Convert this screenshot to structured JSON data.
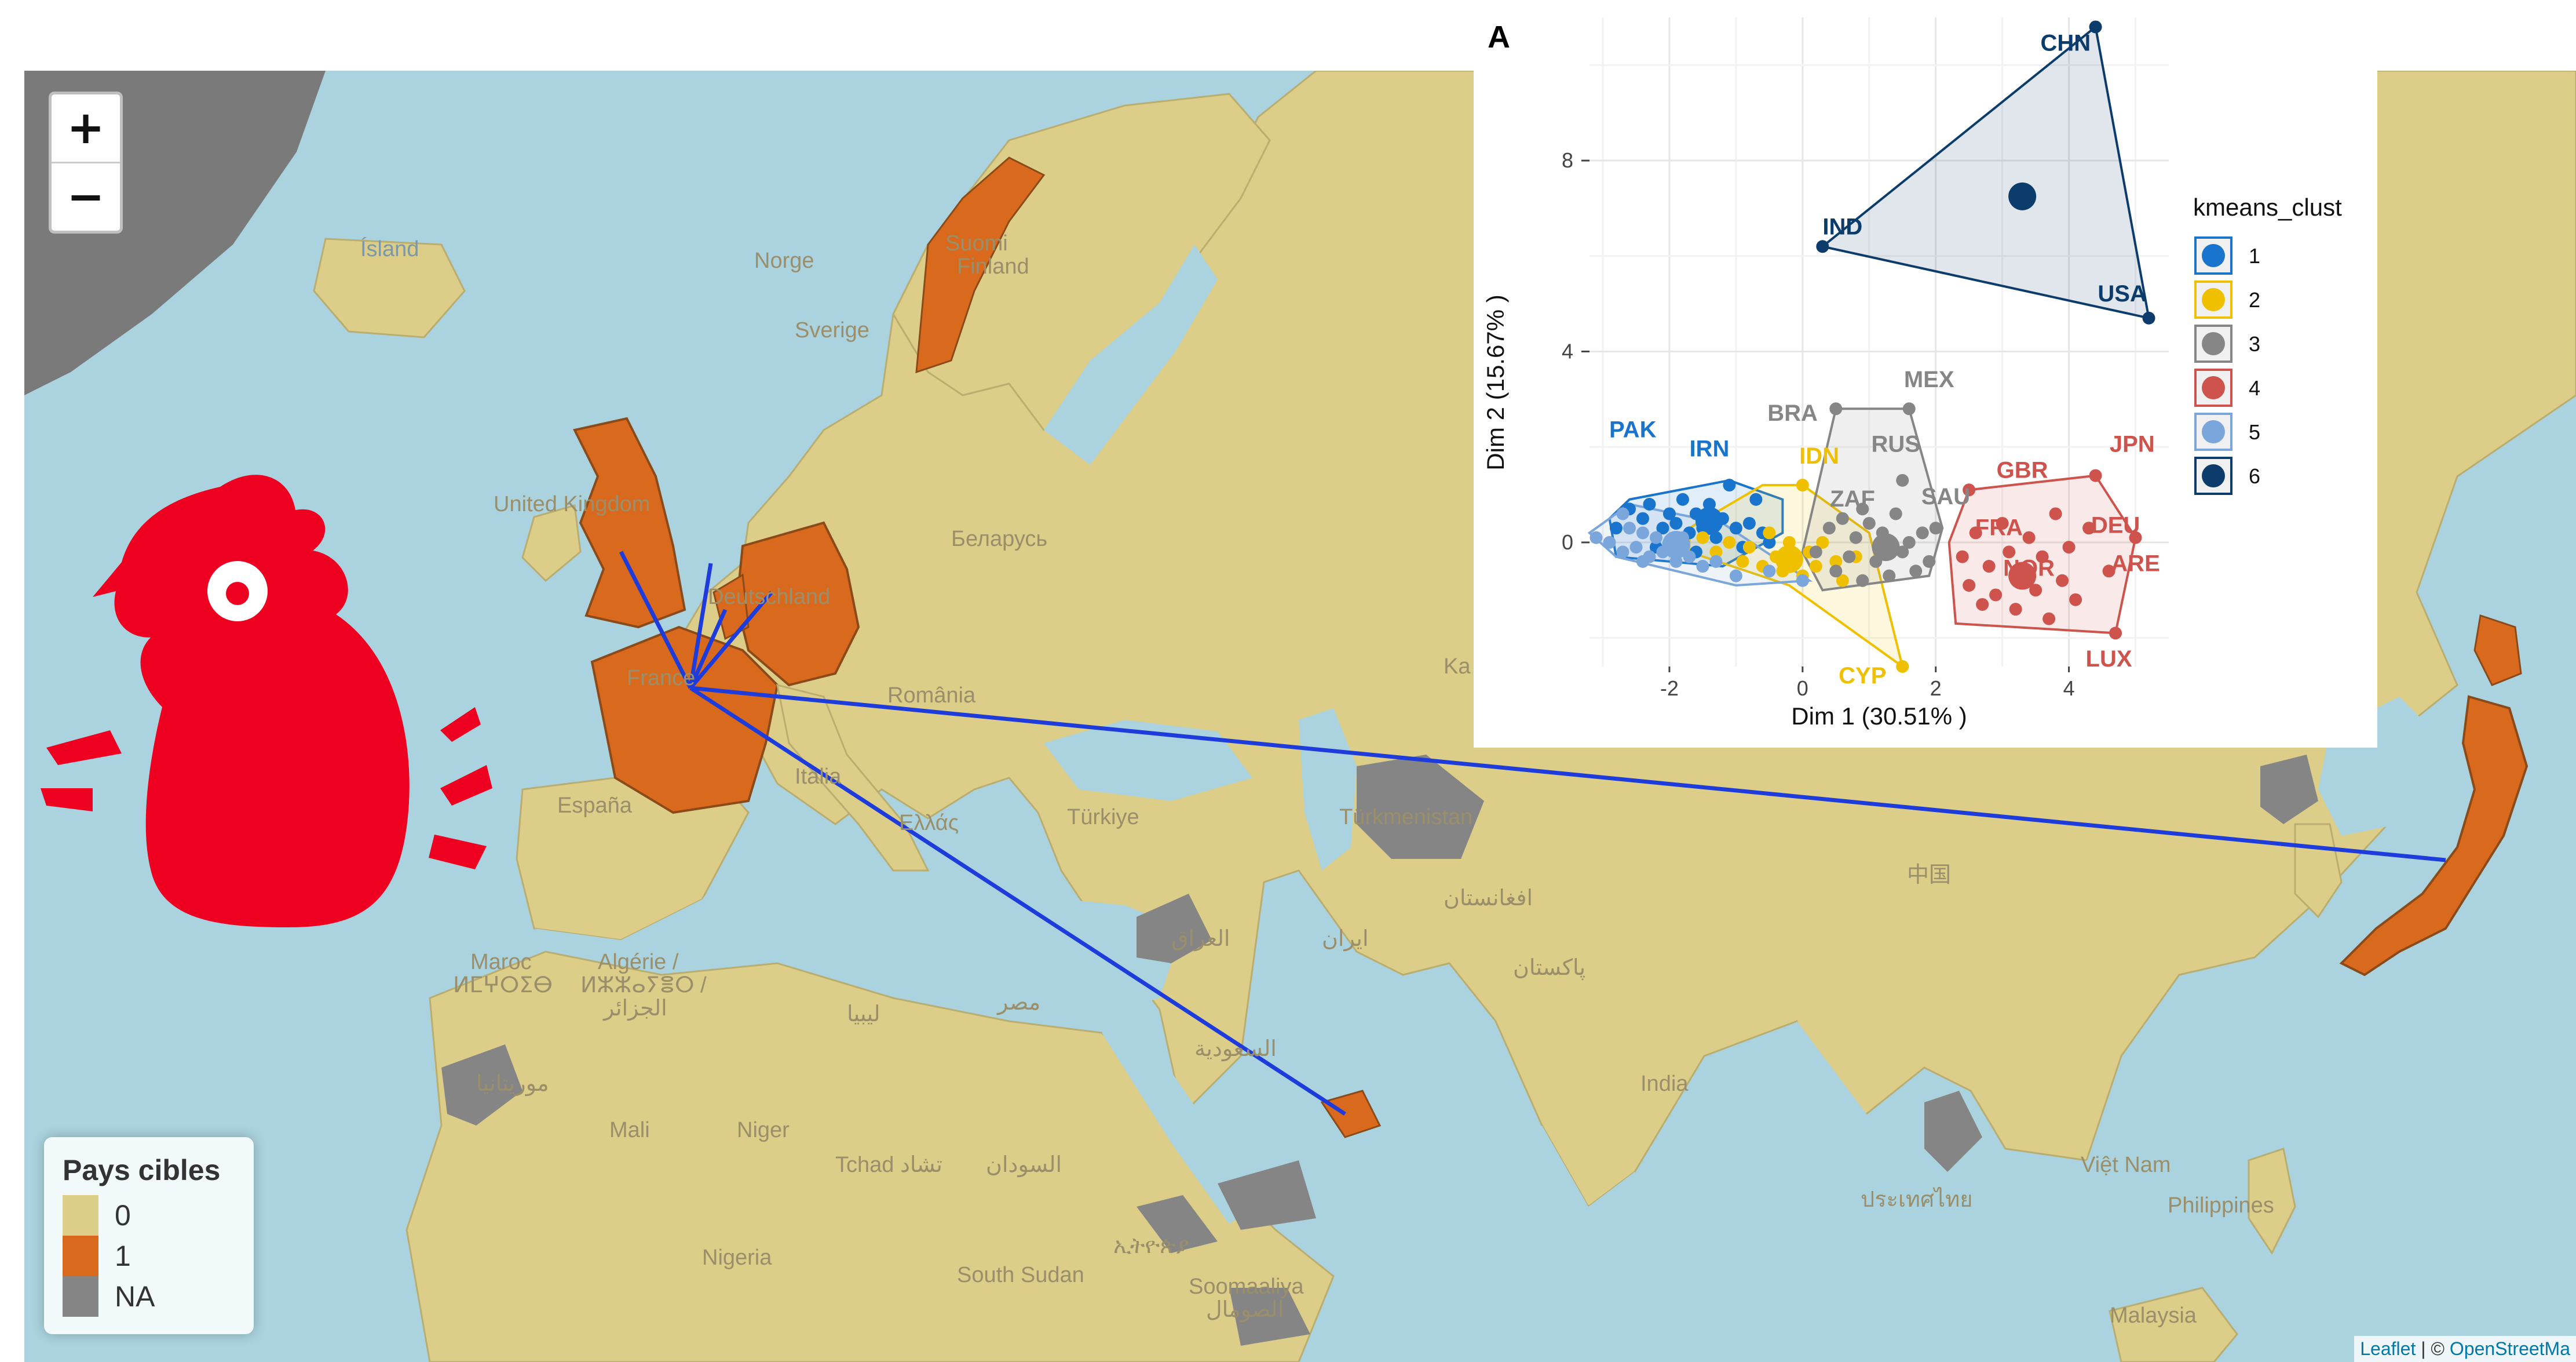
{
  "map": {
    "zoom_in_label": "+",
    "zoom_out_label": "−",
    "legend": {
      "title": "Pays cibles",
      "items": [
        {
          "label": "0",
          "color": "#dccd88"
        },
        {
          "label": "1",
          "color": "#d96a1d"
        },
        {
          "label": "NA",
          "color": "#858585"
        }
      ]
    },
    "attribution": {
      "leaflet": "Leaflet",
      "sep": " | © ",
      "osm": "OpenStreetMa"
    },
    "place_labels": {
      "island": "Ísland",
      "norge": "Norge",
      "suomi": "Suomi",
      "finland": "Finland",
      "sverige": "Sverige",
      "uk": "United Kingdom",
      "deutschland": "Deutschland",
      "belarus": "Беларусь",
      "france": "France",
      "romania": "România",
      "espana": "España",
      "italia": "Italia",
      "turkiye": "Türkiye",
      "ellas": "Ελλάς",
      "kaz": "Ka",
      "turkmenistan": "Türkmenistan",
      "iraq": "العراق",
      "iran": "ایران",
      "afghanistan": "افغانستان",
      "pakistan": "پاکستان",
      "india": "India",
      "china": "中国",
      "misr": "مصر",
      "libya": "ليبيا",
      "saudi": "السعودية",
      "maroc1": "Maroc",
      "maroc2": "ⵍⵎⵖⵔⵉⴱ",
      "algerie1": "Algérie /",
      "algerie2": "ⵍⵣⵣⴰⵢⴻⵔ /",
      "algerie3": "الجزائر",
      "mauritania": "موريتانيا",
      "mali": "Mali",
      "niger": "Niger",
      "tchad": "Tchad تشاد",
      "sudan": "السودان",
      "nigeria": "Nigeria",
      "ethiopia": "ኢትዮጵያ",
      "south_sudan": "South Sudan",
      "somalia1": "Soomaaliya",
      "somalia2": "الصومال",
      "vietnam": "Việt Nam",
      "philippines": "Philippines",
      "malaysia": "Malaysia",
      "thailand": "ประเทศไทย"
    }
  },
  "chart_data": {
    "type": "scatter",
    "panel_label": "A",
    "xlabel": "Dim 1 (30.51% )",
    "ylabel": "Dim 2 (15.67% )",
    "xlim": [
      -3.2,
      5.5
    ],
    "ylim": [
      -2.6,
      11.0
    ],
    "xticks": [
      -2,
      0,
      2,
      4
    ],
    "yticks": [
      0,
      4,
      8
    ],
    "legend_title": "kmeans_clust",
    "clusters": [
      {
        "name": "1",
        "color": "#1874cd",
        "hull": [
          [
            -2.9,
            0.5
          ],
          [
            -2.6,
            0.9
          ],
          [
            -1.1,
            1.3
          ],
          [
            -0.3,
            0.9
          ],
          [
            -0.3,
            0.2
          ],
          [
            -1.2,
            -0.5
          ],
          [
            -2.8,
            -0.3
          ]
        ],
        "centroid": [
          -1.4,
          0.45
        ],
        "points": [
          [
            -2.6,
            0.7
          ],
          [
            -2.4,
            0.5
          ],
          [
            -2.3,
            0.8
          ],
          [
            -2.1,
            0.3
          ],
          [
            -2.0,
            0.6
          ],
          [
            -1.9,
            0.4
          ],
          [
            -1.8,
            0.9
          ],
          [
            -1.7,
            0.2
          ],
          [
            -1.6,
            0.6
          ],
          [
            -1.5,
            0.3
          ],
          [
            -1.4,
            0.8
          ],
          [
            -1.3,
            0.1
          ],
          [
            -1.2,
            0.5
          ],
          [
            -1.1,
            1.2
          ],
          [
            -1.0,
            0.3
          ],
          [
            -0.9,
            -0.1
          ],
          [
            -0.8,
            0.4
          ],
          [
            -0.7,
            0.9
          ],
          [
            -0.6,
            0.2
          ],
          [
            -0.5,
            0.0
          ],
          [
            -2.8,
            0.3
          ],
          [
            -2.2,
            -0.1
          ],
          [
            -1.6,
            -0.2
          ]
        ],
        "labels": [
          {
            "text": "PAK",
            "x": -2.55,
            "y": 2.2
          },
          {
            "text": "IRN",
            "x": -1.4,
            "y": 1.8
          }
        ]
      },
      {
        "name": "2",
        "color": "#efc000",
        "hull": [
          [
            -1.7,
            0.3
          ],
          [
            -0.6,
            1.2
          ],
          [
            0.0,
            1.2
          ],
          [
            1.0,
            0.2
          ],
          [
            1.5,
            -2.6
          ],
          [
            -0.2,
            -0.9
          ],
          [
            -1.7,
            -0.2
          ]
        ],
        "centroid": [
          -0.2,
          -0.35
        ],
        "points": [
          [
            -1.5,
            0.1
          ],
          [
            -1.3,
            -0.2
          ],
          [
            -1.1,
            0.0
          ],
          [
            -0.9,
            -0.4
          ],
          [
            -0.8,
            -0.1
          ],
          [
            -0.6,
            -0.5
          ],
          [
            -0.5,
            0.2
          ],
          [
            -0.4,
            -0.3
          ],
          [
            -0.3,
            -0.6
          ],
          [
            -0.2,
            0.0
          ],
          [
            -0.1,
            -0.4
          ],
          [
            0.0,
            -0.7
          ],
          [
            0.1,
            -0.2
          ],
          [
            0.2,
            -0.5
          ],
          [
            0.3,
            0.0
          ],
          [
            0.5,
            -0.4
          ],
          [
            0.6,
            -0.8
          ],
          [
            0.8,
            -0.3
          ],
          [
            0.0,
            1.2
          ],
          [
            1.5,
            -2.6
          ]
        ],
        "labels": [
          {
            "text": "IDN",
            "x": 0.25,
            "y": 1.65
          },
          {
            "text": "CYP",
            "x": 0.9,
            "y": -2.95
          }
        ]
      },
      {
        "name": "3",
        "color": "#868686",
        "hull": [
          [
            0.5,
            2.8
          ],
          [
            1.6,
            2.8
          ],
          [
            2.1,
            0.3
          ],
          [
            1.9,
            -0.7
          ],
          [
            0.3,
            -1.0
          ],
          [
            0.0,
            -0.2
          ]
        ],
        "centroid": [
          1.25,
          -0.1
        ],
        "points": [
          [
            0.2,
            -0.2
          ],
          [
            0.4,
            0.3
          ],
          [
            0.5,
            -0.6
          ],
          [
            0.6,
            0.5
          ],
          [
            0.7,
            -0.3
          ],
          [
            0.8,
            0.1
          ],
          [
            0.9,
            -0.8
          ],
          [
            1.0,
            0.4
          ],
          [
            1.1,
            -0.4
          ],
          [
            1.2,
            0.2
          ],
          [
            1.3,
            -0.7
          ],
          [
            1.4,
            0.6
          ],
          [
            1.5,
            -0.2
          ],
          [
            1.6,
            0.0
          ],
          [
            1.7,
            -0.6
          ],
          [
            1.8,
            0.2
          ],
          [
            1.9,
            -0.4
          ],
          [
            2.0,
            0.3
          ],
          [
            0.5,
            2.8
          ],
          [
            1.6,
            2.8
          ],
          [
            1.5,
            1.3
          ],
          [
            0.9,
            0.7
          ]
        ],
        "labels": [
          {
            "text": "BRA",
            "x": -0.15,
            "y": 2.55
          },
          {
            "text": "MEX",
            "x": 1.9,
            "y": 3.25
          },
          {
            "text": "RUS",
            "x": 1.4,
            "y": 1.9
          },
          {
            "text": "ZAF",
            "x": 0.75,
            "y": 0.75
          },
          {
            "text": "SAU",
            "x": 2.15,
            "y": 0.8
          }
        ]
      },
      {
        "name": "4",
        "color": "#cd534c",
        "hull": [
          [
            2.2,
            0.0
          ],
          [
            2.5,
            1.1
          ],
          [
            4.4,
            1.4
          ],
          [
            5.0,
            0.1
          ],
          [
            4.7,
            -1.9
          ],
          [
            2.3,
            -1.7
          ]
        ],
        "centroid": [
          3.3,
          -0.7
        ],
        "points": [
          [
            2.4,
            -0.3
          ],
          [
            2.5,
            -0.9
          ],
          [
            2.6,
            0.2
          ],
          [
            2.7,
            -1.3
          ],
          [
            2.8,
            -0.5
          ],
          [
            2.9,
            -1.1
          ],
          [
            3.0,
            0.4
          ],
          [
            3.1,
            -0.2
          ],
          [
            3.2,
            -1.4
          ],
          [
            3.3,
            -0.6
          ],
          [
            3.4,
            0.1
          ],
          [
            3.5,
            -1.0
          ],
          [
            3.6,
            -0.3
          ],
          [
            3.7,
            -1.6
          ],
          [
            3.8,
            0.6
          ],
          [
            3.9,
            -0.8
          ],
          [
            4.0,
            -0.1
          ],
          [
            4.1,
            -1.2
          ],
          [
            4.3,
            0.3
          ],
          [
            4.4,
            1.4
          ],
          [
            4.6,
            -0.6
          ],
          [
            4.7,
            -1.9
          ],
          [
            5.0,
            0.1
          ],
          [
            2.5,
            1.1
          ]
        ],
        "labels": [
          {
            "text": "GBR",
            "x": 3.3,
            "y": 1.35
          },
          {
            "text": "JPN",
            "x": 4.95,
            "y": 1.9
          },
          {
            "text": "FRA",
            "x": 2.95,
            "y": 0.15
          },
          {
            "text": "DEU",
            "x": 4.7,
            "y": 0.2
          },
          {
            "text": "NOR",
            "x": 3.4,
            "y": -0.7
          },
          {
            "text": "ARE",
            "x": 5.0,
            "y": -0.6
          },
          {
            "text": "LUX",
            "x": 4.6,
            "y": -2.6
          }
        ]
      },
      {
        "name": "5",
        "color": "#7aa6dc",
        "hull": [
          [
            -3.2,
            0.2
          ],
          [
            -2.6,
            0.8
          ],
          [
            -1.2,
            0.4
          ],
          [
            0.1,
            -0.8
          ],
          [
            -1.0,
            -0.9
          ],
          [
            -2.8,
            -0.3
          ]
        ],
        "centroid": [
          -1.9,
          -0.05
        ],
        "points": [
          [
            -3.1,
            0.1
          ],
          [
            -2.9,
            0.0
          ],
          [
            -2.7,
            -0.2
          ],
          [
            -2.6,
            0.3
          ],
          [
            -2.5,
            -0.1
          ],
          [
            -2.4,
            0.2
          ],
          [
            -2.3,
            -0.3
          ],
          [
            -2.2,
            0.1
          ],
          [
            -2.1,
            -0.2
          ],
          [
            -2.0,
            0.0
          ],
          [
            -1.9,
            -0.4
          ],
          [
            -1.8,
            0.1
          ],
          [
            -1.7,
            -0.3
          ],
          [
            -1.5,
            -0.5
          ],
          [
            -1.3,
            -0.4
          ],
          [
            -1.0,
            -0.7
          ],
          [
            -0.5,
            -0.6
          ],
          [
            0.0,
            -0.8
          ],
          [
            -2.7,
            0.6
          ],
          [
            -2.4,
            -0.4
          ]
        ],
        "labels": []
      },
      {
        "name": "6",
        "color": "#0c3c6b",
        "hull": [
          [
            0.3,
            6.2
          ],
          [
            4.4,
            10.8
          ],
          [
            5.2,
            4.7
          ]
        ],
        "centroid": [
          3.3,
          7.25
        ],
        "points": [
          [
            0.3,
            6.2
          ],
          [
            4.4,
            10.8
          ],
          [
            5.2,
            4.7
          ]
        ],
        "labels": [
          {
            "text": "CHN",
            "x": 3.95,
            "y": 10.3
          },
          {
            "text": "IND",
            "x": 0.6,
            "y": 6.45
          },
          {
            "text": "USA",
            "x": 4.8,
            "y": 5.05
          }
        ]
      }
    ]
  }
}
